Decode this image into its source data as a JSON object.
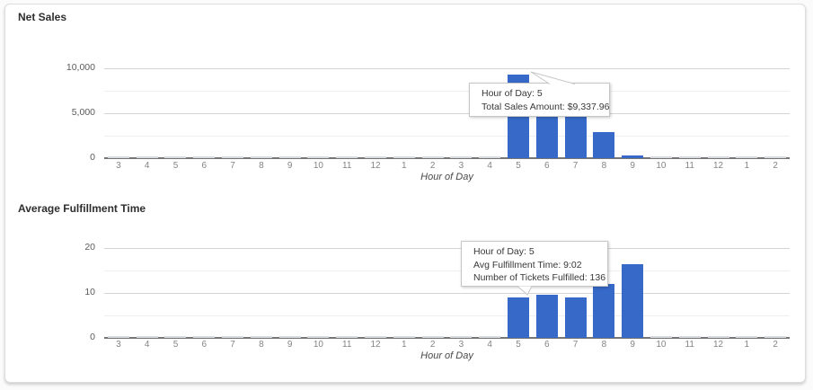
{
  "card": {
    "background": "#ffffff"
  },
  "chart_data": [
    {
      "type": "bar",
      "title": "Net Sales",
      "xlabel": "Hour of Day",
      "ylabel": "",
      "categories": [
        "3",
        "4",
        "5",
        "6",
        "7",
        "8",
        "9",
        "10",
        "11",
        "12",
        "1",
        "2",
        "3",
        "4",
        "5",
        "6",
        "7",
        "8",
        "9",
        "10",
        "11",
        "12",
        "1",
        "2"
      ],
      "values": [
        0,
        0,
        0,
        0,
        0,
        0,
        0,
        0,
        0,
        0,
        0,
        0,
        0,
        0,
        9337.96,
        4850,
        4830,
        2850,
        250,
        0,
        0,
        0,
        0,
        0
      ],
      "ylim": [
        0,
        11300
      ],
      "y_major_ticks": [
        {
          "value": 0,
          "label": "0"
        },
        {
          "value": 5000,
          "label": "5,000"
        },
        {
          "value": 10000,
          "label": "10,000"
        }
      ],
      "y_minor_ticks": [
        2500,
        7500
      ],
      "grid": true,
      "legend": "none",
      "bar_color": "#3769c8",
      "tooltip": {
        "anchor_category_index": 14,
        "lines": [
          "Hour of Day: 5",
          "Total Sales Amount: $9,337.96"
        ]
      }
    },
    {
      "type": "bar",
      "title": "Average Fulfillment Time",
      "xlabel": "Hour of Day",
      "ylabel": "",
      "categories": [
        "3",
        "4",
        "5",
        "6",
        "7",
        "8",
        "9",
        "10",
        "11",
        "12",
        "1",
        "2",
        "3",
        "4",
        "5",
        "6",
        "7",
        "8",
        "9",
        "10",
        "11",
        "12",
        "1",
        "2"
      ],
      "values": [
        0,
        0,
        0,
        0,
        0,
        0,
        0,
        0,
        0,
        0,
        0,
        0,
        0,
        0,
        9.03,
        9.5,
        8.9,
        11.9,
        16.3,
        0,
        0,
        0,
        0,
        0
      ],
      "ylim": [
        0,
        22
      ],
      "y_major_ticks": [
        {
          "value": 0,
          "label": "0"
        },
        {
          "value": 10,
          "label": "10"
        },
        {
          "value": 20,
          "label": "20"
        }
      ],
      "y_minor_ticks": [
        5,
        15
      ],
      "grid": true,
      "legend": "none",
      "bar_color": "#3769c8",
      "tooltip": {
        "anchor_category_index": 14,
        "lines": [
          "Hour of Day: 5",
          "Avg Fulfillment Time: 9:02",
          "Number of Tickets Fulfilled: 136"
        ]
      }
    }
  ]
}
